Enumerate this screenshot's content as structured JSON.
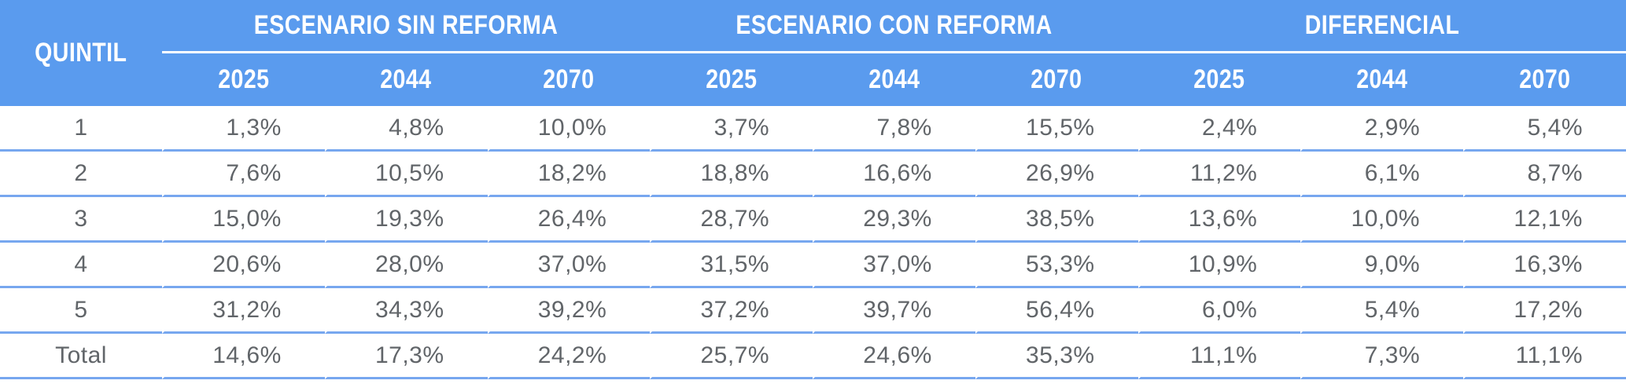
{
  "table": {
    "quintil_label": "QUINTIL",
    "groups": [
      {
        "label": "ESCENARIO SIN REFORMA",
        "years": [
          "2025",
          "2044",
          "2070"
        ]
      },
      {
        "label": "ESCENARIO CON REFORMA",
        "years": [
          "2025",
          "2044",
          "2070"
        ]
      },
      {
        "label": "DIFERENCIAL",
        "years": [
          "2025",
          "2044",
          "2070"
        ]
      }
    ],
    "rows": [
      {
        "label": "1",
        "values": [
          "1,3%",
          "4,8%",
          "10,0%",
          "3,7%",
          "7,8%",
          "15,5%",
          "2,4%",
          "2,9%",
          "5,4%"
        ]
      },
      {
        "label": "2",
        "values": [
          "7,6%",
          "10,5%",
          "18,2%",
          "18,8%",
          "16,6%",
          "26,9%",
          "11,2%",
          "6,1%",
          "8,7%"
        ]
      },
      {
        "label": "3",
        "values": [
          "15,0%",
          "19,3%",
          "26,4%",
          "28,7%",
          "29,3%",
          "38,5%",
          "13,6%",
          "10,0%",
          "12,1%"
        ]
      },
      {
        "label": "4",
        "values": [
          "20,6%",
          "28,0%",
          "37,0%",
          "31,5%",
          "37,0%",
          "53,3%",
          "10,9%",
          "9,0%",
          "16,3%"
        ]
      },
      {
        "label": "5",
        "values": [
          "31,2%",
          "34,3%",
          "39,2%",
          "37,2%",
          "39,7%",
          "56,4%",
          "6,0%",
          "5,4%",
          "17,2%"
        ]
      },
      {
        "label": "Total",
        "values": [
          "14,6%",
          "17,3%",
          "24,2%",
          "25,7%",
          "24,6%",
          "35,3%",
          "11,1%",
          "7,3%",
          "11,1%"
        ]
      }
    ]
  },
  "colors": {
    "header_bg": "#5A9BEE",
    "header_text": "#FFFFFF",
    "row_separator": "#77A7EF",
    "data_text": "#616569"
  },
  "chart_data": {
    "type": "table",
    "row_header": "QUINTIL",
    "categories": [
      "1",
      "2",
      "3",
      "4",
      "5",
      "Total"
    ],
    "unit": "%",
    "decimal_separator": ",",
    "series": [
      {
        "name": "ESCENARIO SIN REFORMA",
        "columns": [
          "2025",
          "2044",
          "2070"
        ],
        "values": [
          [
            1.3,
            4.8,
            10.0
          ],
          [
            7.6,
            10.5,
            18.2
          ],
          [
            15.0,
            19.3,
            26.4
          ],
          [
            20.6,
            28.0,
            37.0
          ],
          [
            31.2,
            34.3,
            39.2
          ],
          [
            14.6,
            17.3,
            24.2
          ]
        ]
      },
      {
        "name": "ESCENARIO CON REFORMA",
        "columns": [
          "2025",
          "2044",
          "2070"
        ],
        "values": [
          [
            3.7,
            7.8,
            15.5
          ],
          [
            18.8,
            16.6,
            26.9
          ],
          [
            28.7,
            29.3,
            38.5
          ],
          [
            31.5,
            37.0,
            53.3
          ],
          [
            37.2,
            39.7,
            56.4
          ],
          [
            25.7,
            24.6,
            35.3
          ]
        ]
      },
      {
        "name": "DIFERENCIAL",
        "columns": [
          "2025",
          "2044",
          "2070"
        ],
        "values": [
          [
            2.4,
            2.9,
            5.4
          ],
          [
            11.2,
            6.1,
            8.7
          ],
          [
            13.6,
            10.0,
            12.1
          ],
          [
            10.9,
            9.0,
            16.3
          ],
          [
            6.0,
            5.4,
            17.2
          ],
          [
            11.1,
            7.3,
            11.1
          ]
        ]
      }
    ],
    "legend_position": "none",
    "grid": "horizontal-row-separators"
  }
}
